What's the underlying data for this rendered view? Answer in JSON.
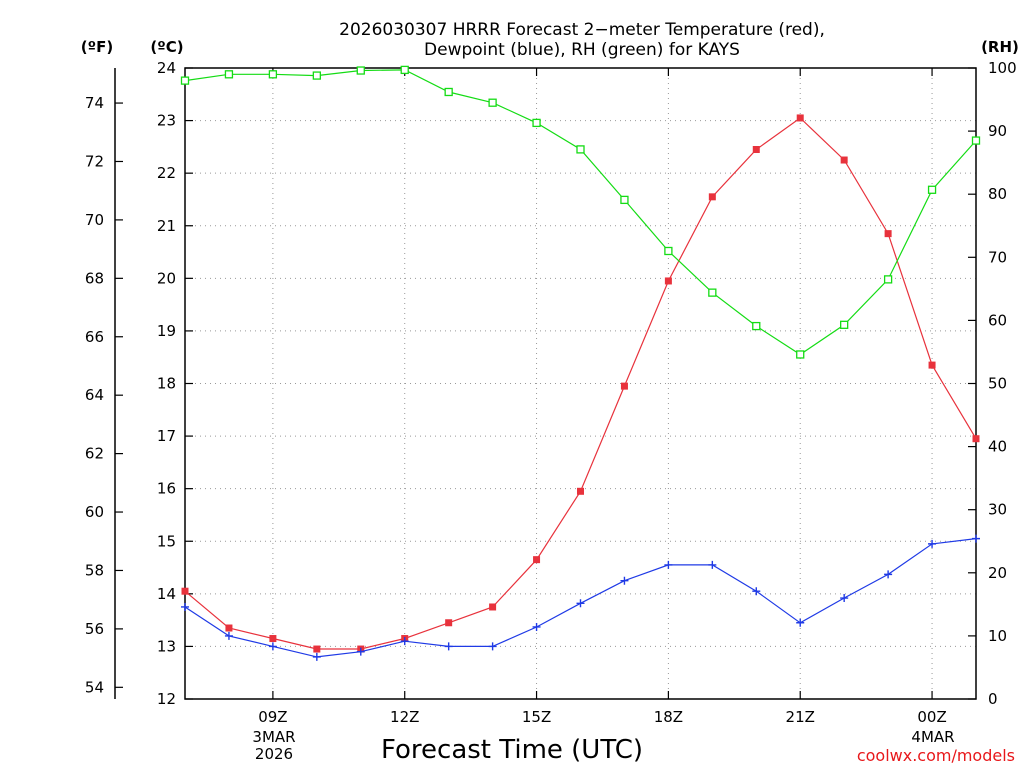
{
  "title_lines": [
    "2026030307 HRRR Forecast 2−meter Temperature (red),",
    "Dewpoint (blue), RH (green) for KAYS"
  ],
  "units": {
    "fahrenheit": "(ºF)",
    "celsius": "(ºC)",
    "rh": "(RH)"
  },
  "xlabel": "Forecast Time (UTC)",
  "credit": "coolwx.com/models",
  "date_labels": [
    {
      "text": "3MAR",
      "at_hour": 9
    },
    {
      "text": "2026",
      "at_hour": 9
    },
    {
      "text": "4MAR",
      "at_hour": 24
    }
  ],
  "colors": {
    "temperature": "#e8323c",
    "dewpoint": "#1f3ae6",
    "rh": "#14dc14",
    "axis": "#000000",
    "grid": "#999999",
    "credit": "#e8181b"
  },
  "chart_data": {
    "type": "line",
    "title": "2026030307 HRRR Forecast 2−meter Temperature (red), Dewpoint (blue), RH (green) for KAYS",
    "xlabel": "Forecast Time (UTC)",
    "x_hours": [
      7,
      8,
      9,
      10,
      11,
      12,
      13,
      14,
      15,
      16,
      17,
      18,
      19,
      20,
      21,
      22,
      23,
      24,
      25
    ],
    "xlim": [
      7,
      25
    ],
    "x_ticks": [
      {
        "hour": 9,
        "label": "09Z"
      },
      {
        "hour": 12,
        "label": "12Z"
      },
      {
        "hour": 15,
        "label": "15Z"
      },
      {
        "hour": 18,
        "label": "18Z"
      },
      {
        "hour": 21,
        "label": "21Z"
      },
      {
        "hour": 24,
        "label": "00Z"
      }
    ],
    "y_left_c": {
      "label": "(ºC)",
      "range": [
        12,
        24
      ],
      "ticks": [
        "12",
        "13",
        "14",
        "15",
        "16",
        "17",
        "18",
        "19",
        "20",
        "21",
        "22",
        "23",
        "24"
      ]
    },
    "y_left_f": {
      "label": "(ºF)",
      "range": [
        53.6,
        75.2
      ],
      "ticks": [
        "54",
        "56",
        "58",
        "60",
        "62",
        "64",
        "66",
        "68",
        "70",
        "72",
        "74"
      ]
    },
    "y_right_rh": {
      "label": "(RH)",
      "range": [
        0,
        100
      ],
      "ticks": [
        "0",
        "10",
        "20",
        "30",
        "40",
        "50",
        "60",
        "70",
        "80",
        "90",
        "100"
      ]
    },
    "series": [
      {
        "name": "Temperature",
        "axis": "celsius",
        "marker": "filled-square",
        "color": "#e8323c",
        "values": [
          14.05,
          13.35,
          13.15,
          12.95,
          12.95,
          13.15,
          13.45,
          13.75,
          14.65,
          15.95,
          17.95,
          19.95,
          21.55,
          22.45,
          23.05,
          22.25,
          20.85,
          18.35,
          16.95
        ]
      },
      {
        "name": "Dewpoint",
        "axis": "celsius",
        "marker": "plus",
        "color": "#1f3ae6",
        "values": [
          13.75,
          13.2,
          13.0,
          12.8,
          12.9,
          13.1,
          13.0,
          13.0,
          13.37,
          13.82,
          14.25,
          14.55,
          14.55,
          14.05,
          13.45,
          13.92,
          14.37,
          14.95,
          15.05
        ]
      },
      {
        "name": "RH",
        "axis": "rh",
        "marker": "open-square",
        "color": "#14dc14",
        "values": [
          98,
          99,
          99,
          98.8,
          99.6,
          99.7,
          96.2,
          94.5,
          91.3,
          87.1,
          79.1,
          71,
          64.4,
          59.1,
          54.6,
          59.3,
          66.5,
          80.7,
          88.5
        ]
      }
    ]
  }
}
